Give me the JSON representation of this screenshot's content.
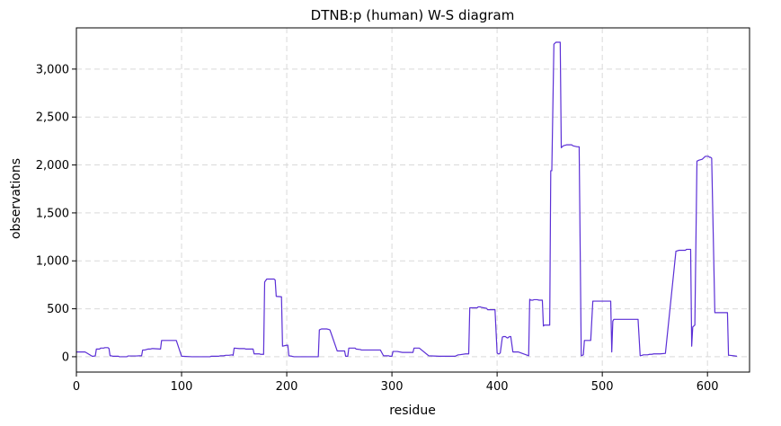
{
  "chart_data": {
    "type": "line",
    "title": "DTNB:p (human) W-S diagram",
    "xlabel": "residue",
    "ylabel": "observations",
    "xlim": [
      0,
      640
    ],
    "ylim": [
      -160,
      3430
    ],
    "xticks": [
      0,
      100,
      200,
      300,
      400,
      500,
      600
    ],
    "yticks": [
      0,
      500,
      1000,
      1500,
      2000,
      2500,
      3000
    ],
    "ytick_labels": [
      "0",
      "500",
      "1,000",
      "1,500",
      "2,000",
      "2,500",
      "3,000"
    ],
    "grid": true,
    "series": [
      {
        "color": "#5b2fd6",
        "x": [
          0,
          8,
          9,
          15,
          16,
          18,
          19,
          22,
          23,
          26,
          27,
          30,
          31,
          32,
          33,
          35,
          40,
          41,
          48,
          49,
          57,
          60,
          62,
          63,
          65,
          68,
          70,
          72,
          73,
          80,
          81,
          83,
          84,
          92,
          93,
          95,
          100,
          110,
          120,
          127,
          128,
          135,
          137,
          140,
          142,
          145,
          148,
          149,
          150,
          155,
          160,
          161,
          168,
          169,
          174,
          175,
          176,
          178,
          179,
          181,
          188,
          189,
          190,
          195,
          196,
          200,
          201,
          202,
          205,
          207,
          215,
          223,
          224,
          230,
          231,
          233,
          238,
          240,
          241,
          242,
          248,
          249,
          250,
          255,
          256,
          258,
          259,
          262,
          265,
          266,
          270,
          271,
          280,
          281,
          288,
          289,
          292,
          297,
          298,
          300,
          301,
          305,
          310,
          311,
          316,
          320,
          321,
          325,
          326,
          335,
          345,
          350,
          354,
          355,
          356,
          360,
          361,
          363,
          364,
          370,
          373,
          374,
          378,
          380,
          381,
          382,
          383,
          384,
          385,
          390,
          391,
          398,
          400,
          401,
          402,
          403,
          405,
          406,
          408,
          409,
          410,
          411,
          412,
          413,
          415,
          420,
          425,
          430,
          431,
          432,
          434,
          435,
          436,
          437,
          438,
          440,
          443,
          444,
          445,
          446,
          447,
          449,
          450,
          451,
          452,
          454,
          455,
          456,
          458,
          459,
          460,
          461,
          463,
          466,
          470,
          471,
          472,
          476,
          478,
          480,
          482,
          483,
          484,
          486,
          488,
          489,
          491,
          492,
          493,
          495,
          496,
          498,
          500,
          501,
          502,
          503,
          504,
          505,
          506,
          507,
          508,
          509,
          510,
          511,
          512,
          513,
          514,
          520,
          528,
          530,
          534,
          536,
          538,
          539,
          540,
          541,
          543,
          545,
          547,
          549,
          550,
          551,
          555,
          560,
          570,
          573,
          575,
          576,
          578,
          579,
          580,
          581,
          582,
          583,
          584,
          585,
          586,
          588,
          590,
          592,
          595,
          598,
          600,
          601,
          602,
          603,
          604,
          607,
          610,
          615,
          618,
          619,
          620,
          621,
          625,
          628
        ],
        "y": [
          50,
          50,
          45,
          5,
          5,
          10,
          80,
          80,
          90,
          90,
          95,
          95,
          85,
          10,
          10,
          5,
          5,
          0,
          0,
          8,
          8,
          10,
          10,
          70,
          70,
          80,
          80,
          85,
          85,
          80,
          170,
          170,
          170,
          170,
          170,
          170,
          5,
          0,
          0,
          0,
          5,
          5,
          10,
          10,
          15,
          15,
          20,
          15,
          90,
          85,
          85,
          80,
          80,
          30,
          30,
          25,
          25,
          25,
          780,
          810,
          810,
          800,
          630,
          625,
          110,
          120,
          120,
          10,
          5,
          0,
          0,
          0,
          0,
          0,
          280,
          290,
          290,
          285,
          280,
          250,
          60,
          60,
          60,
          60,
          5,
          5,
          90,
          90,
          90,
          80,
          75,
          70,
          70,
          70,
          70,
          70,
          10,
          10,
          5,
          5,
          55,
          55,
          45,
          45,
          45,
          45,
          90,
          90,
          90,
          10,
          5,
          5,
          5,
          5,
          5,
          5,
          10,
          20,
          20,
          30,
          30,
          510,
          510,
          510,
          510,
          520,
          520,
          520,
          515,
          505,
          490,
          490,
          40,
          30,
          30,
          40,
          205,
          210,
          210,
          200,
          195,
          205,
          210,
          210,
          50,
          50,
          30,
          10,
          600,
          590,
          590,
          595,
          595,
          595,
          595,
          590,
          590,
          320,
          330,
          330,
          330,
          330,
          330,
          1940,
          1940,
          3260,
          3270,
          3280,
          3280,
          3280,
          3280,
          2180,
          2200,
          2210,
          2210,
          2210,
          2200,
          2190,
          2190,
          10,
          20,
          170,
          170,
          170,
          170,
          170,
          580,
          580,
          580,
          580,
          580,
          580,
          580,
          580,
          580,
          580,
          580,
          580,
          580,
          580,
          580,
          50,
          370,
          390,
          390,
          390,
          390,
          390,
          390,
          390,
          390,
          10,
          15,
          20,
          20,
          20,
          20,
          25,
          25,
          30,
          30,
          30,
          30,
          35,
          1100,
          1110,
          1110,
          1110,
          1110,
          1110,
          1120,
          1120,
          1120,
          1120,
          1120,
          110,
          310,
          330,
          2040,
          2050,
          2060,
          2090,
          2090,
          2090,
          2080,
          2080,
          2070,
          460,
          460,
          460,
          460,
          460,
          15,
          15,
          10,
          5
        ]
      }
    ]
  }
}
